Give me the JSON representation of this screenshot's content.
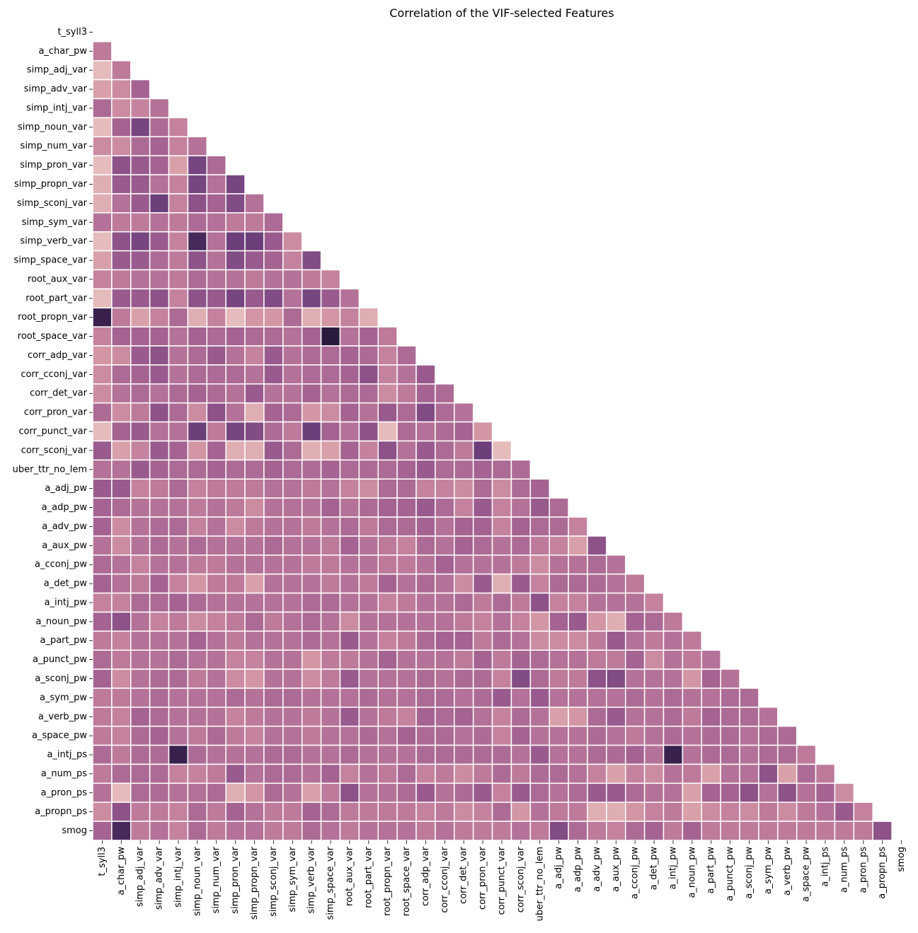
{
  "chart_data": {
    "type": "heatmap",
    "title": "Correlation of the VIF-selected Features",
    "xlabel": "",
    "ylabel": "",
    "mask": "upper-triangle-including-diagonal",
    "colorbar": false,
    "grid_lines": "white",
    "colormap": {
      "name": "cubehelix light-to-dark",
      "stops": [
        "#ecc9c4",
        "#d69ca7",
        "#c07c9c",
        "#a46391",
        "#7e4984",
        "#5a3370",
        "#2a1a3e"
      ]
    },
    "labels": [
      "t_syll3",
      "a_char_pw",
      "simp_adj_var",
      "simp_adv_var",
      "simp_intj_var",
      "simp_noun_var",
      "simp_num_var",
      "simp_pron_var",
      "simp_propn_var",
      "simp_sconj_var",
      "simp_sym_var",
      "simp_verb_var",
      "simp_space_var",
      "root_aux_var",
      "root_part_var",
      "root_propn_var",
      "root_space_var",
      "corr_adp_var",
      "corr_cconj_var",
      "corr_det_var",
      "corr_pron_var",
      "corr_punct_var",
      "corr_sconj_var",
      "uber_ttr_no_lem",
      "a_adj_pw",
      "a_adp_pw",
      "a_adv_pw",
      "a_aux_pw",
      "a_cconj_pw",
      "a_det_pw",
      "a_intj_pw",
      "a_noun_pw",
      "a_part_pw",
      "a_punct_pw",
      "a_sconj_pw",
      "a_sym_pw",
      "a_verb_pw",
      "a_space_pw",
      "a_intj_ps",
      "a_num_ps",
      "a_pron_ps",
      "a_propn_ps",
      "smog"
    ],
    "value_scale": "estimated intensity, 0 = lightest, 1 = darkest",
    "values": [
      [],
      [
        0.35
      ],
      [
        0.05,
        0.35
      ],
      [
        0.15,
        0.25,
        0.5
      ],
      [
        0.45,
        0.25,
        0.3,
        0.4
      ],
      [
        0.05,
        0.5,
        0.7,
        0.45,
        0.3
      ],
      [
        0.25,
        0.25,
        0.45,
        0.5,
        0.3,
        0.4
      ],
      [
        0.05,
        0.6,
        0.55,
        0.5,
        0.15,
        0.7,
        0.45
      ],
      [
        0.1,
        0.55,
        0.55,
        0.4,
        0.3,
        0.7,
        0.4,
        0.7
      ],
      [
        0.1,
        0.4,
        0.55,
        0.75,
        0.3,
        0.6,
        0.5,
        0.65,
        0.4
      ],
      [
        0.4,
        0.35,
        0.35,
        0.4,
        0.35,
        0.45,
        0.4,
        0.35,
        0.35,
        0.45
      ],
      [
        0.05,
        0.6,
        0.7,
        0.55,
        0.3,
        0.9,
        0.4,
        0.75,
        0.75,
        0.55,
        0.25
      ],
      [
        0.15,
        0.55,
        0.55,
        0.45,
        0.35,
        0.6,
        0.4,
        0.65,
        0.55,
        0.5,
        0.3,
        0.65
      ],
      [
        0.3,
        0.35,
        0.4,
        0.4,
        0.35,
        0.45,
        0.4,
        0.4,
        0.35,
        0.4,
        0.4,
        0.35,
        0.3
      ],
      [
        0.05,
        0.55,
        0.55,
        0.6,
        0.3,
        0.6,
        0.55,
        0.7,
        0.55,
        0.65,
        0.4,
        0.7,
        0.55,
        0.4
      ],
      [
        0.95,
        0.35,
        0.15,
        0.3,
        0.45,
        0.1,
        0.3,
        0.05,
        0.2,
        0.2,
        0.45,
        0.1,
        0.2,
        0.3,
        0.1
      ],
      [
        0.3,
        0.5,
        0.5,
        0.5,
        0.4,
        0.5,
        0.45,
        0.5,
        0.45,
        0.45,
        0.4,
        0.5,
        1.0,
        0.4,
        0.5,
        0.35
      ],
      [
        0.2,
        0.25,
        0.55,
        0.6,
        0.4,
        0.45,
        0.55,
        0.4,
        0.3,
        0.55,
        0.4,
        0.45,
        0.45,
        0.5,
        0.45,
        0.3,
        0.45
      ],
      [
        0.25,
        0.45,
        0.5,
        0.55,
        0.4,
        0.45,
        0.45,
        0.45,
        0.4,
        0.55,
        0.4,
        0.45,
        0.45,
        0.5,
        0.6,
        0.3,
        0.4,
        0.55
      ],
      [
        0.25,
        0.4,
        0.45,
        0.4,
        0.45,
        0.5,
        0.45,
        0.4,
        0.55,
        0.4,
        0.4,
        0.5,
        0.4,
        0.45,
        0.45,
        0.25,
        0.35,
        0.5,
        0.45
      ],
      [
        0.45,
        0.25,
        0.35,
        0.6,
        0.45,
        0.25,
        0.6,
        0.4,
        0.1,
        0.5,
        0.45,
        0.2,
        0.25,
        0.5,
        0.4,
        0.55,
        0.45,
        0.65,
        0.45,
        0.4
      ],
      [
        0.05,
        0.5,
        0.55,
        0.4,
        0.4,
        0.75,
        0.35,
        0.7,
        0.65,
        0.45,
        0.35,
        0.75,
        0.5,
        0.4,
        0.6,
        0.05,
        0.45,
        0.4,
        0.45,
        0.5,
        0.2
      ],
      [
        0.55,
        0.15,
        0.3,
        0.55,
        0.5,
        0.2,
        0.5,
        0.1,
        0.1,
        0.55,
        0.45,
        0.1,
        0.15,
        0.5,
        0.3,
        0.6,
        0.4,
        0.55,
        0.45,
        0.35,
        0.75,
        0.05
      ],
      [
        0.4,
        0.4,
        0.55,
        0.5,
        0.45,
        0.45,
        0.5,
        0.45,
        0.45,
        0.5,
        0.45,
        0.45,
        0.5,
        0.45,
        0.45,
        0.45,
        0.5,
        0.55,
        0.45,
        0.45,
        0.5,
        0.45,
        0.45
      ],
      [
        0.55,
        0.55,
        0.3,
        0.35,
        0.45,
        0.3,
        0.35,
        0.35,
        0.35,
        0.4,
        0.4,
        0.35,
        0.4,
        0.3,
        0.25,
        0.45,
        0.45,
        0.3,
        0.3,
        0.25,
        0.45,
        0.25,
        0.45,
        0.5
      ],
      [
        0.5,
        0.45,
        0.4,
        0.4,
        0.4,
        0.35,
        0.4,
        0.35,
        0.25,
        0.4,
        0.4,
        0.4,
        0.5,
        0.4,
        0.45,
        0.5,
        0.5,
        0.55,
        0.45,
        0.3,
        0.55,
        0.3,
        0.4,
        0.55,
        0.45
      ],
      [
        0.5,
        0.25,
        0.4,
        0.45,
        0.45,
        0.3,
        0.4,
        0.25,
        0.35,
        0.4,
        0.4,
        0.35,
        0.4,
        0.45,
        0.35,
        0.45,
        0.45,
        0.5,
        0.4,
        0.5,
        0.5,
        0.3,
        0.5,
        0.45,
        0.45,
        0.3
      ],
      [
        0.4,
        0.25,
        0.4,
        0.45,
        0.4,
        0.45,
        0.4,
        0.4,
        0.4,
        0.45,
        0.4,
        0.4,
        0.35,
        0.5,
        0.4,
        0.35,
        0.3,
        0.45,
        0.4,
        0.5,
        0.45,
        0.4,
        0.45,
        0.35,
        0.3,
        0.15,
        0.6
      ],
      [
        0.45,
        0.4,
        0.3,
        0.4,
        0.4,
        0.35,
        0.35,
        0.4,
        0.4,
        0.4,
        0.4,
        0.35,
        0.35,
        0.4,
        0.4,
        0.35,
        0.35,
        0.4,
        0.5,
        0.4,
        0.4,
        0.4,
        0.35,
        0.25,
        0.4,
        0.4,
        0.45,
        0.4
      ],
      [
        0.5,
        0.4,
        0.35,
        0.5,
        0.3,
        0.2,
        0.35,
        0.35,
        0.15,
        0.4,
        0.4,
        0.4,
        0.35,
        0.4,
        0.35,
        0.5,
        0.4,
        0.45,
        0.4,
        0.25,
        0.55,
        0.1,
        0.55,
        0.3,
        0.45,
        0.45,
        0.45,
        0.4,
        0.35
      ],
      [
        0.3,
        0.3,
        0.45,
        0.45,
        0.5,
        0.45,
        0.4,
        0.4,
        0.4,
        0.4,
        0.4,
        0.45,
        0.45,
        0.4,
        0.4,
        0.3,
        0.35,
        0.4,
        0.4,
        0.45,
        0.35,
        0.45,
        0.35,
        0.6,
        0.3,
        0.3,
        0.4,
        0.4,
        0.4,
        0.3
      ],
      [
        0.5,
        0.6,
        0.4,
        0.3,
        0.35,
        0.25,
        0.3,
        0.35,
        0.45,
        0.35,
        0.4,
        0.45,
        0.4,
        0.25,
        0.4,
        0.4,
        0.4,
        0.4,
        0.4,
        0.35,
        0.3,
        0.4,
        0.3,
        0.2,
        0.5,
        0.55,
        0.2,
        0.1,
        0.5,
        0.45,
        0.35
      ],
      [
        0.35,
        0.3,
        0.4,
        0.4,
        0.4,
        0.5,
        0.4,
        0.35,
        0.4,
        0.4,
        0.4,
        0.45,
        0.4,
        0.55,
        0.4,
        0.3,
        0.35,
        0.45,
        0.5,
        0.5,
        0.35,
        0.45,
        0.4,
        0.25,
        0.25,
        0.25,
        0.35,
        0.55,
        0.4,
        0.35,
        0.4,
        0.35
      ],
      [
        0.45,
        0.35,
        0.4,
        0.4,
        0.45,
        0.4,
        0.4,
        0.3,
        0.3,
        0.4,
        0.4,
        0.2,
        0.35,
        0.35,
        0.4,
        0.5,
        0.4,
        0.4,
        0.4,
        0.35,
        0.5,
        0.35,
        0.5,
        0.45,
        0.4,
        0.4,
        0.35,
        0.35,
        0.5,
        0.25,
        0.4,
        0.35,
        0.4
      ],
      [
        0.5,
        0.25,
        0.4,
        0.45,
        0.45,
        0.35,
        0.4,
        0.25,
        0.2,
        0.4,
        0.4,
        0.25,
        0.35,
        0.55,
        0.4,
        0.4,
        0.4,
        0.45,
        0.4,
        0.45,
        0.45,
        0.3,
        0.65,
        0.45,
        0.35,
        0.35,
        0.6,
        0.65,
        0.4,
        0.4,
        0.4,
        0.2,
        0.5,
        0.4
      ],
      [
        0.35,
        0.35,
        0.4,
        0.45,
        0.4,
        0.4,
        0.4,
        0.45,
        0.4,
        0.45,
        0.45,
        0.4,
        0.4,
        0.4,
        0.45,
        0.4,
        0.4,
        0.45,
        0.45,
        0.4,
        0.45,
        0.55,
        0.4,
        0.55,
        0.4,
        0.4,
        0.4,
        0.4,
        0.45,
        0.4,
        0.45,
        0.4,
        0.4,
        0.45,
        0.45
      ],
      [
        0.35,
        0.3,
        0.5,
        0.45,
        0.4,
        0.4,
        0.4,
        0.3,
        0.35,
        0.4,
        0.4,
        0.35,
        0.4,
        0.55,
        0.4,
        0.35,
        0.3,
        0.5,
        0.45,
        0.5,
        0.4,
        0.3,
        0.45,
        0.4,
        0.15,
        0.2,
        0.45,
        0.55,
        0.4,
        0.4,
        0.45,
        0.35,
        0.5,
        0.45,
        0.45,
        0.4
      ],
      [
        0.35,
        0.3,
        0.45,
        0.5,
        0.4,
        0.35,
        0.45,
        0.35,
        0.3,
        0.4,
        0.4,
        0.35,
        0.4,
        0.4,
        0.45,
        0.4,
        0.5,
        0.45,
        0.45,
        0.4,
        0.45,
        0.3,
        0.5,
        0.4,
        0.4,
        0.4,
        0.45,
        0.4,
        0.35,
        0.4,
        0.45,
        0.4,
        0.45,
        0.45,
        0.4,
        0.45,
        0.45
      ],
      [
        0.45,
        0.35,
        0.45,
        0.45,
        0.95,
        0.45,
        0.4,
        0.4,
        0.4,
        0.45,
        0.45,
        0.4,
        0.4,
        0.45,
        0.4,
        0.4,
        0.4,
        0.45,
        0.45,
        0.45,
        0.45,
        0.45,
        0.4,
        0.55,
        0.4,
        0.4,
        0.45,
        0.45,
        0.5,
        0.4,
        0.95,
        0.4,
        0.45,
        0.45,
        0.4,
        0.45,
        0.45,
        0.35
      ],
      [
        0.35,
        0.45,
        0.45,
        0.45,
        0.3,
        0.3,
        0.35,
        0.55,
        0.4,
        0.45,
        0.45,
        0.4,
        0.5,
        0.3,
        0.4,
        0.35,
        0.45,
        0.3,
        0.35,
        0.25,
        0.35,
        0.45,
        0.35,
        0.45,
        0.45,
        0.4,
        0.3,
        0.15,
        0.3,
        0.25,
        0.4,
        0.35,
        0.15,
        0.4,
        0.4,
        0.6,
        0.15,
        0.45,
        0.35
      ],
      [
        0.4,
        0.05,
        0.45,
        0.45,
        0.4,
        0.4,
        0.45,
        0.1,
        0.2,
        0.45,
        0.4,
        0.15,
        0.35,
        0.6,
        0.4,
        0.4,
        0.45,
        0.55,
        0.4,
        0.45,
        0.55,
        0.3,
        0.55,
        0.45,
        0.4,
        0.45,
        0.55,
        0.55,
        0.45,
        0.4,
        0.4,
        0.15,
        0.5,
        0.5,
        0.6,
        0.4,
        0.6,
        0.4,
        0.5,
        0.25
      ],
      [
        0.25,
        0.6,
        0.35,
        0.35,
        0.3,
        0.45,
        0.35,
        0.5,
        0.4,
        0.35,
        0.35,
        0.5,
        0.45,
        0.35,
        0.35,
        0.35,
        0.35,
        0.3,
        0.35,
        0.25,
        0.3,
        0.45,
        0.2,
        0.4,
        0.35,
        0.35,
        0.1,
        0.1,
        0.2,
        0.3,
        0.35,
        0.15,
        0.25,
        0.3,
        0.25,
        0.35,
        0.25,
        0.35,
        0.4,
        0.55,
        0.3
      ],
      [
        0.5,
        0.9,
        0.35,
        0.4,
        0.3,
        0.45,
        0.35,
        0.4,
        0.4,
        0.35,
        0.35,
        0.45,
        0.4,
        0.35,
        0.4,
        0.4,
        0.4,
        0.35,
        0.4,
        0.35,
        0.35,
        0.35,
        0.4,
        0.35,
        0.65,
        0.45,
        0.35,
        0.3,
        0.45,
        0.5,
        0.35,
        0.5,
        0.35,
        0.35,
        0.35,
        0.35,
        0.35,
        0.35,
        0.35,
        0.35,
        0.35,
        0.6
      ]
    ]
  }
}
